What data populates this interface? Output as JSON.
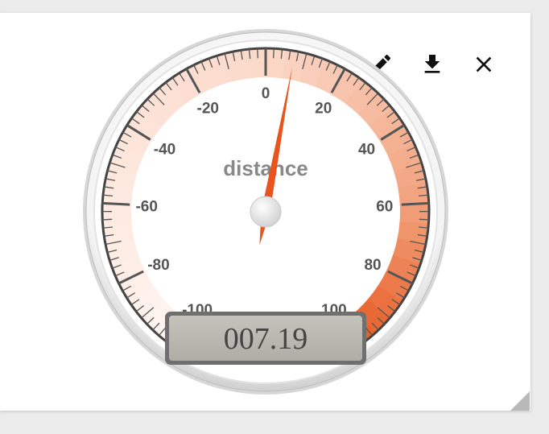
{
  "toolbar": {
    "edit_icon": "pencil-icon",
    "download_icon": "download-icon",
    "close_icon": "close-icon"
  },
  "gauge": {
    "title": "distance",
    "min": -100,
    "max": 100,
    "major_ticks": [
      "-100",
      "-80",
      "-60",
      "-40",
      "-20",
      "0",
      "20",
      "40",
      "60",
      "80",
      "100"
    ],
    "value": 7.19,
    "display": "007.19",
    "colors": {
      "band_light": "#fbd9c9",
      "band_mid": "#f2a37f",
      "band_dark": "#e8602a",
      "needle": "#e8541d",
      "tick": "#555555",
      "label": "#555555",
      "title": "#888888",
      "lcd_bg": "#b8b8b0",
      "lcd_text": "#444444"
    }
  }
}
